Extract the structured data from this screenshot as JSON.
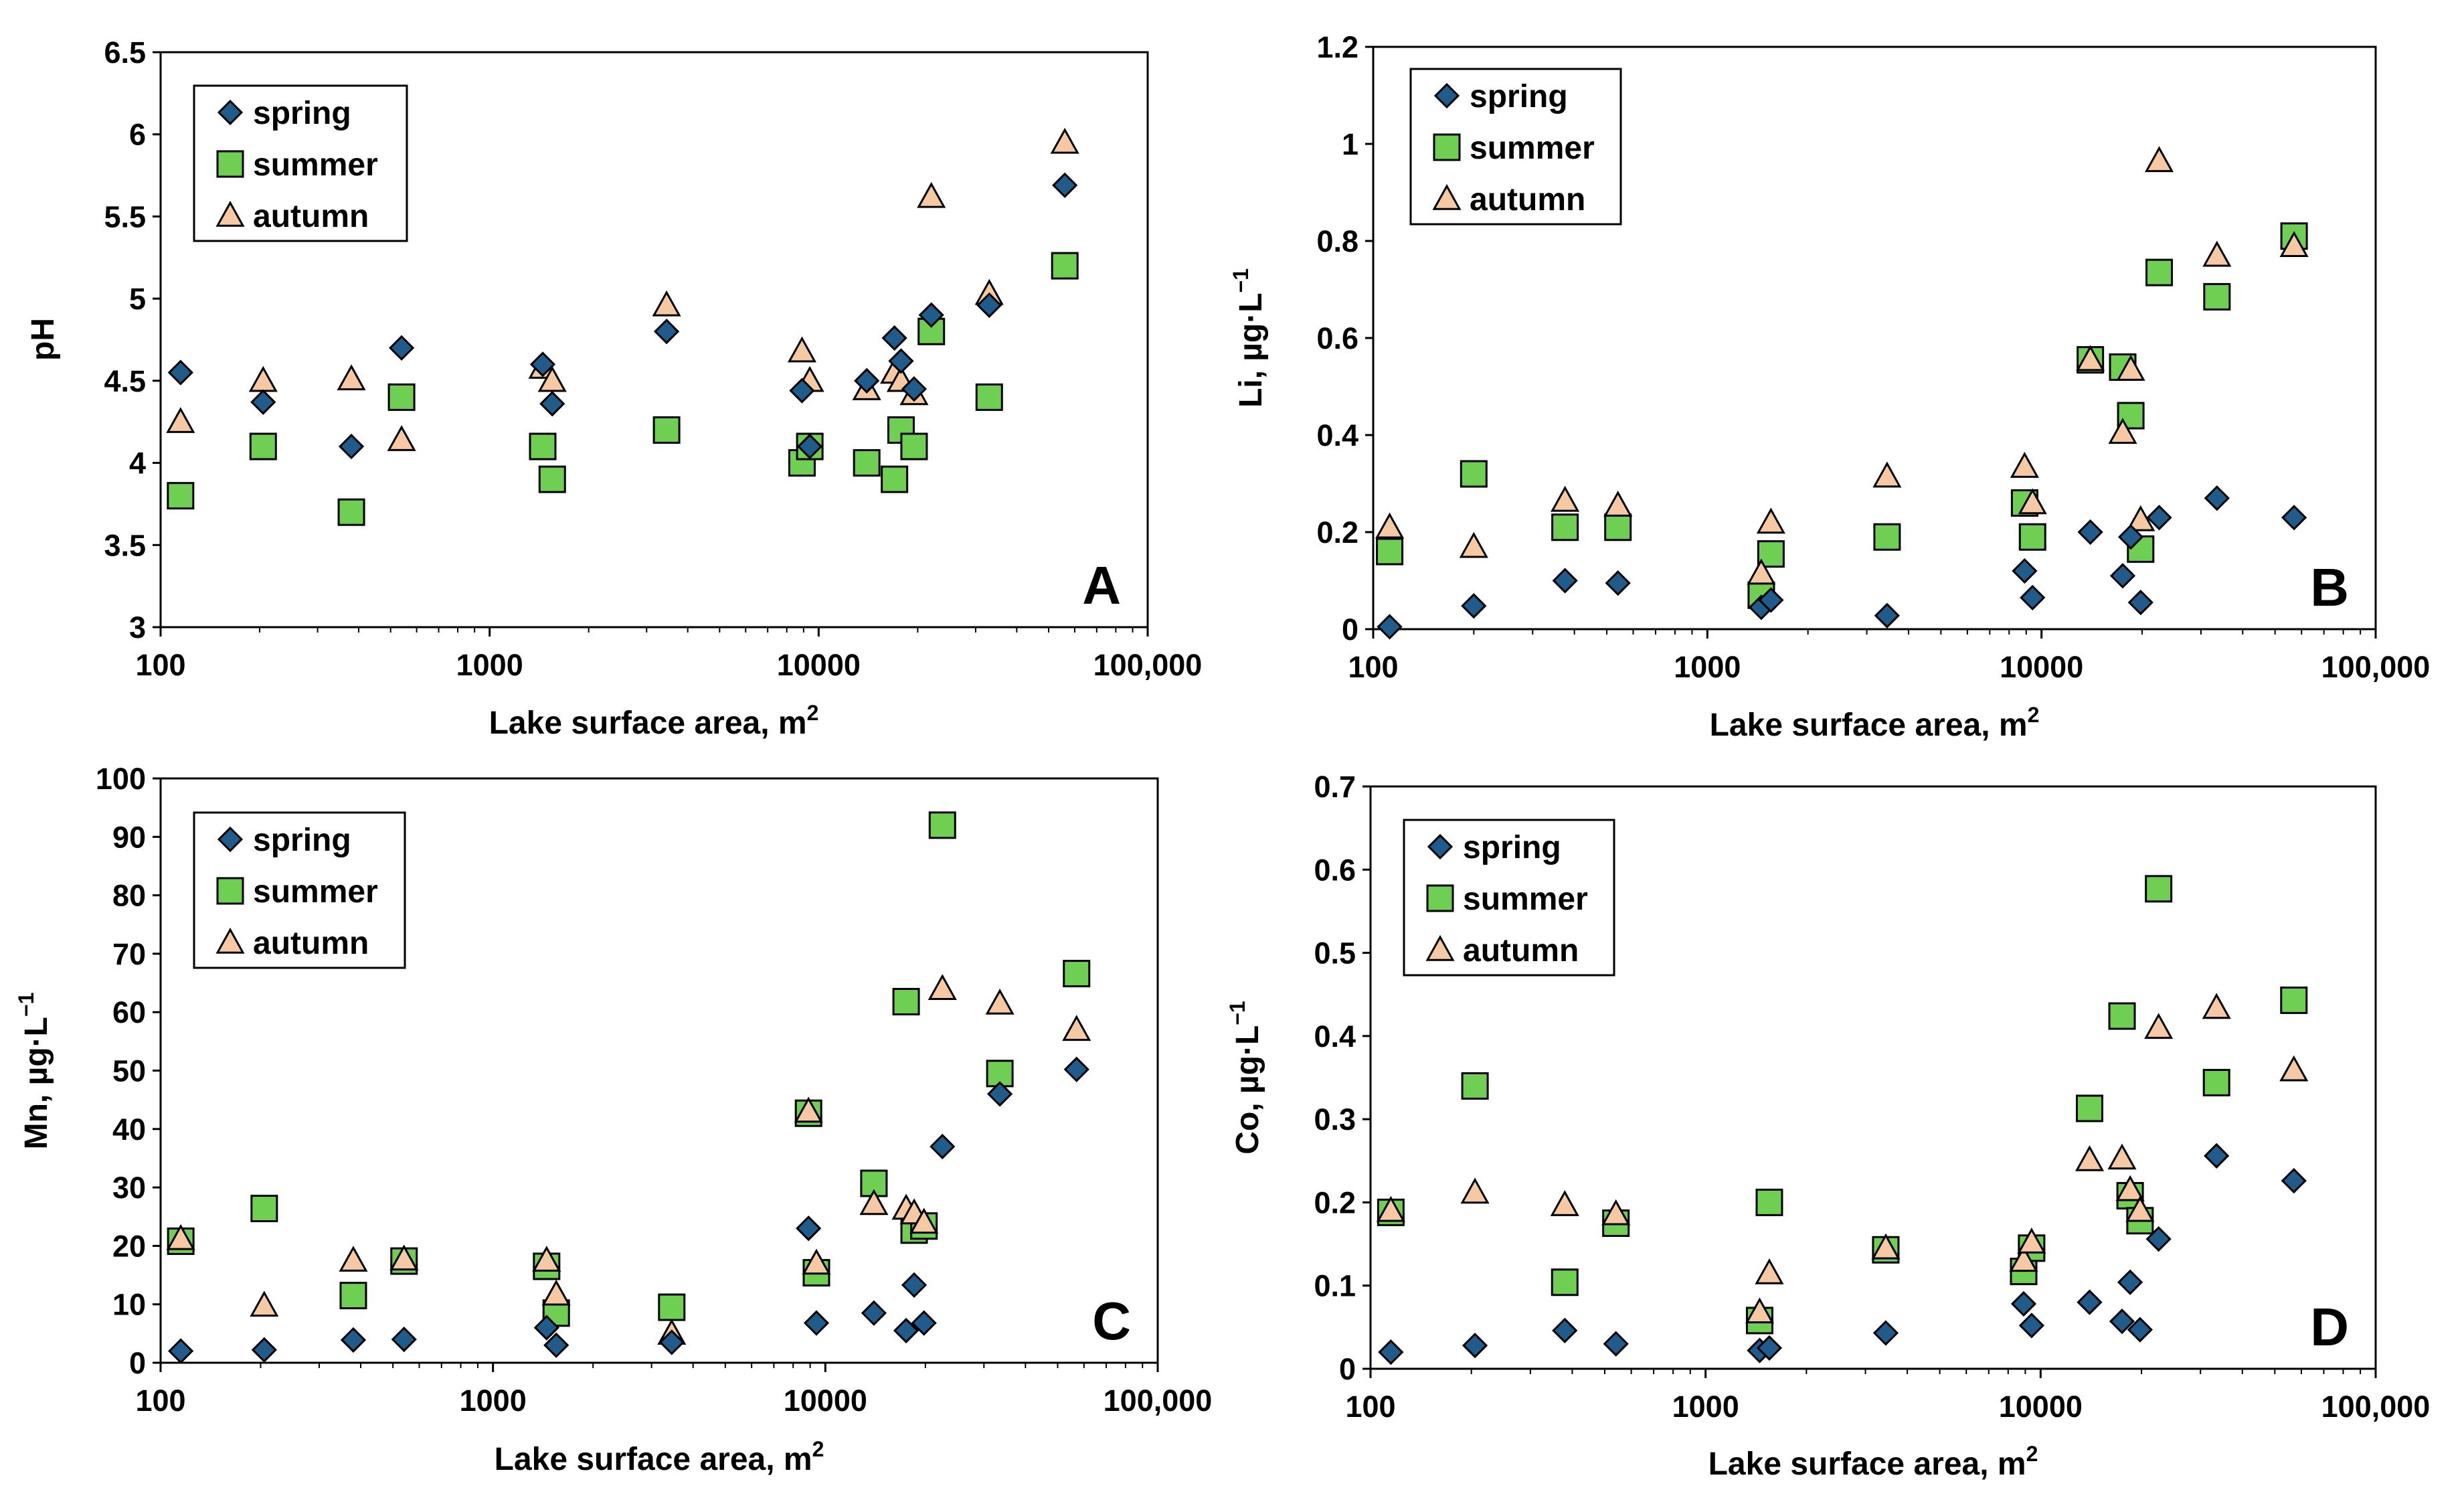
{
  "colors": {
    "spring": "#1f5c8b",
    "summer": "#6fcf52",
    "autumn": "#f7c9a3",
    "stroke": "#000000"
  },
  "chart_data": [
    {
      "type": "scatter",
      "panel_label": "A",
      "xlabel": "Lake surface area, m",
      "xlabel_sup": "2",
      "ylabel": "pH",
      "xscale": "log",
      "xlim": [
        100,
        100000
      ],
      "ylim": [
        3,
        6.5
      ],
      "xticks": [
        100,
        1000,
        10000,
        100000
      ],
      "xtick_labels": [
        "100",
        "1000",
        "10000",
        "100,000"
      ],
      "yticks": [
        3,
        3.5,
        4,
        4.5,
        5,
        5.5,
        6,
        6.5
      ],
      "ytick_labels": [
        "3",
        "3.5",
        "4",
        "4.5",
        "5",
        "5.5",
        "6",
        "6.5"
      ],
      "legend_position": "top-left",
      "series": [
        {
          "name": "spring",
          "marker": "diamond",
          "x": [
            115,
            205,
            380,
            540,
            1450,
            1550,
            3450,
            8900,
            9400,
            14000,
            17000,
            17800,
            19500,
            22000,
            33000,
            56000
          ],
          "y": [
            4.55,
            4.37,
            4.1,
            4.7,
            4.6,
            4.36,
            4.8,
            4.44,
            4.1,
            4.5,
            4.76,
            4.62,
            4.45,
            4.9,
            4.96,
            5.69
          ]
        },
        {
          "name": "summer",
          "marker": "square",
          "x": [
            115,
            205,
            380,
            540,
            1450,
            1550,
            3450,
            8900,
            9400,
            14000,
            17000,
            17800,
            19500,
            22000,
            33000,
            56000
          ],
          "y": [
            3.8,
            4.1,
            3.7,
            4.4,
            4.1,
            3.9,
            4.2,
            4.0,
            4.1,
            4.0,
            3.9,
            4.2,
            4.1,
            4.8,
            4.4,
            5.2
          ]
        },
        {
          "name": "autumn",
          "marker": "triangle",
          "x": [
            115,
            205,
            380,
            540,
            1450,
            1550,
            3450,
            8900,
            9400,
            14000,
            17000,
            17800,
            19500,
            22000,
            33000,
            56000
          ],
          "y": [
            4.25,
            4.5,
            4.51,
            4.14,
            4.58,
            4.5,
            4.96,
            4.68,
            4.5,
            4.45,
            4.55,
            4.5,
            4.42,
            5.62,
            5.03,
            5.95
          ]
        }
      ]
    },
    {
      "type": "scatter",
      "panel_label": "B",
      "xlabel": "Lake surface area, m",
      "xlabel_sup": "2",
      "ylabel": "Li, µg·L",
      "ylabel_sup": "−1",
      "xscale": "log",
      "xlim": [
        100,
        100000
      ],
      "ylim": [
        0,
        1.2
      ],
      "xticks": [
        100,
        1000,
        10000,
        100000
      ],
      "xtick_labels": [
        "100",
        "1000",
        "10000",
        "100,000"
      ],
      "yticks": [
        0,
        0.2,
        0.4,
        0.6,
        0.8,
        1,
        1.2
      ],
      "ytick_labels": [
        "0",
        "0.2",
        "0.4",
        "0.6",
        "0.8",
        "1",
        "1.2"
      ],
      "legend_position": "top-left",
      "series": [
        {
          "name": "spring",
          "marker": "diamond",
          "x": [
            112,
            200,
            375,
            540,
            1450,
            1550,
            3450,
            8900,
            9400,
            14000,
            17500,
            18500,
            19800,
            22500,
            33500,
            57000
          ],
          "y": [
            0.005,
            0.048,
            0.1,
            0.095,
            0.045,
            0.06,
            0.028,
            0.12,
            0.065,
            0.2,
            0.11,
            0.19,
            0.055,
            0.23,
            0.27,
            0.23
          ]
        },
        {
          "name": "summer",
          "marker": "square",
          "x": [
            112,
            200,
            375,
            540,
            1450,
            1550,
            3450,
            8900,
            9400,
            14000,
            17500,
            18500,
            19800,
            22500,
            33500,
            57000
          ],
          "y": [
            0.16,
            0.32,
            0.21,
            0.21,
            0.07,
            0.155,
            0.19,
            0.26,
            0.19,
            0.555,
            0.54,
            0.44,
            0.165,
            0.735,
            0.685,
            0.81
          ]
        },
        {
          "name": "autumn",
          "marker": "triangle",
          "x": [
            112,
            200,
            375,
            540,
            1450,
            1550,
            3450,
            8900,
            9400,
            14000,
            17500,
            18500,
            19800,
            22500,
            33500,
            57000
          ],
          "y": [
            0.21,
            0.17,
            0.265,
            0.255,
            0.115,
            0.22,
            0.315,
            0.335,
            0.26,
            0.555,
            0.405,
            0.535,
            0.225,
            0.965,
            0.77,
            0.79
          ]
        }
      ]
    },
    {
      "type": "scatter",
      "panel_label": "C",
      "xlabel": "Lake surface area, m",
      "xlabel_sup": "2",
      "ylabel": "Mn, µg·L",
      "ylabel_sup": "−1",
      "xscale": "log",
      "xlim": [
        100,
        100000
      ],
      "ylim": [
        0,
        100
      ],
      "xticks": [
        100,
        1000,
        10000,
        100000
      ],
      "xtick_labels": [
        "100",
        "1000",
        "10000",
        "100,000"
      ],
      "yticks": [
        0,
        10,
        20,
        30,
        40,
        50,
        60,
        70,
        80,
        90,
        100
      ],
      "ytick_labels": [
        "0",
        "10",
        "20",
        "30",
        "40",
        "50",
        "60",
        "70",
        "80",
        "90",
        "100"
      ],
      "legend_position": "top-left",
      "series": [
        {
          "name": "spring",
          "marker": "diamond",
          "x": [
            115,
            205,
            380,
            540,
            1450,
            1550,
            3450,
            8900,
            9400,
            14000,
            17500,
            18500,
            19800,
            22500,
            33500,
            57000
          ],
          "y": [
            2,
            2.2,
            3.9,
            4,
            6,
            3,
            3.5,
            23,
            6.8,
            8.5,
            5.5,
            13.3,
            6.8,
            37,
            46,
            50.2
          ]
        },
        {
          "name": "summer",
          "marker": "square",
          "x": [
            115,
            205,
            380,
            540,
            1450,
            1550,
            3450,
            8900,
            9400,
            14000,
            17500,
            18500,
            19800,
            22500,
            33500,
            57000
          ],
          "y": [
            20.8,
            26.4,
            11.5,
            17.4,
            16.5,
            8.5,
            9.5,
            42.7,
            15.4,
            30.7,
            61.8,
            22.7,
            23.4,
            92,
            49.5,
            66.6
          ]
        },
        {
          "name": "autumn",
          "marker": "triangle",
          "x": [
            115,
            205,
            380,
            540,
            1450,
            1550,
            3450,
            8900,
            9400,
            14000,
            17500,
            18500,
            19800,
            22500,
            33500,
            57000
          ],
          "y": [
            21.2,
            9.8,
            17.5,
            17.7,
            17.5,
            11.7,
            5,
            43,
            17,
            27.2,
            26.4,
            25.6,
            24,
            64,
            61.5,
            57
          ]
        }
      ]
    },
    {
      "type": "scatter",
      "panel_label": "D",
      "xlabel": "Lake surface area, m",
      "xlabel_sup": "2",
      "ylabel": "Co, µg·L",
      "ylabel_sup": "−1",
      "xscale": "log",
      "xlim": [
        100,
        100000
      ],
      "ylim": [
        0,
        0.7
      ],
      "xticks": [
        100,
        1000,
        10000,
        100000
      ],
      "xtick_labels": [
        "100",
        "1000",
        "10000",
        "100,000"
      ],
      "yticks": [
        0,
        0.1,
        0.2,
        0.3,
        0.4,
        0.5,
        0.6,
        0.7
      ],
      "ytick_labels": [
        "0",
        "0.1",
        "0.2",
        "0.3",
        "0.4",
        "0.5",
        "0.6",
        "0.7"
      ],
      "legend_position": "top-left",
      "series": [
        {
          "name": "spring",
          "marker": "diamond",
          "x": [
            115,
            205,
            380,
            540,
            1450,
            1550,
            3450,
            8900,
            9400,
            14000,
            17500,
            18500,
            19800,
            22500,
            33500,
            57000
          ],
          "y": [
            0.02,
            0.028,
            0.046,
            0.03,
            0.022,
            0.025,
            0.043,
            0.078,
            0.052,
            0.08,
            0.057,
            0.104,
            0.047,
            0.156,
            0.256,
            0.226
          ]
        },
        {
          "name": "summer",
          "marker": "square",
          "x": [
            115,
            205,
            380,
            540,
            1450,
            1550,
            3450,
            8900,
            9400,
            14000,
            17500,
            18500,
            19800,
            22500,
            33500,
            57000
          ],
          "y": [
            0.188,
            0.34,
            0.104,
            0.175,
            0.058,
            0.2,
            0.143,
            0.117,
            0.145,
            0.313,
            0.424,
            0.208,
            0.178,
            0.577,
            0.344,
            0.443
          ]
        },
        {
          "name": "autumn",
          "marker": "triangle",
          "x": [
            115,
            205,
            380,
            540,
            1450,
            1550,
            3450,
            8900,
            9400,
            14000,
            17500,
            18500,
            19800,
            22500,
            33500,
            57000
          ],
          "y": [
            0.19,
            0.212,
            0.197,
            0.186,
            0.068,
            0.115,
            0.145,
            0.13,
            0.152,
            0.251,
            0.253,
            0.215,
            0.19,
            0.41,
            0.434,
            0.359
          ]
        }
      ]
    }
  ]
}
